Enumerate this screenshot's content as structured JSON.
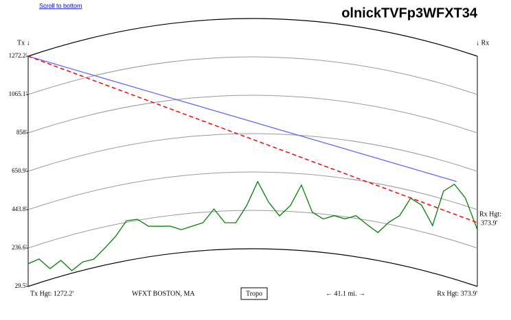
{
  "link": "Scroll to bottom",
  "chart_data": {
    "type": "line",
    "title": "olnickTVFp3WFXT34",
    "tx_label": "Tx ↓",
    "rx_label": "↓ Rx",
    "rx_side_label": [
      "Rx Hgt:",
      "373.9'"
    ],
    "footer": {
      "tx": "Tx Hgt: 1272.2'",
      "station": "WFXT BOSTON, MA",
      "button": "Tropo",
      "distance": "← 41.1 mi. →",
      "rx": "Rx Hgt: 373.9'"
    },
    "ylim": [
      29.5,
      1272.2
    ],
    "yticks": [
      {
        "value": 1272.2,
        "label": "1272.2'"
      },
      {
        "value": 1065.1,
        "label": "1065.1'"
      },
      {
        "value": 858,
        "label": "858'"
      },
      {
        "value": 650.9,
        "label": "650.9'"
      },
      {
        "value": 443.8,
        "label": "443.8'"
      },
      {
        "value": 236.6,
        "label": "236.6'"
      },
      {
        "value": 29.5,
        "label": "29.5'"
      }
    ],
    "xlim": [
      0,
      41.1
    ],
    "curvature": true,
    "series": [
      {
        "color": "#008000",
        "x": [
          0,
          1,
          2,
          3,
          4,
          5,
          6,
          7,
          8,
          9,
          10,
          11,
          12,
          13,
          14,
          15,
          16,
          17,
          18,
          19,
          20,
          21,
          22,
          23,
          24,
          25,
          26,
          27,
          28,
          29,
          30,
          31,
          32,
          33,
          34,
          35,
          36,
          37,
          38,
          39,
          40,
          41.1
        ],
        "values": [
          152,
          158,
          88,
          115,
          43,
          75,
          75,
          121,
          172,
          245,
          242,
          195,
          186,
          179,
          153,
          166,
          180,
          250,
          173,
          171,
          263,
          392,
          282,
          210,
          269,
          383,
          241,
          210,
          235,
          225,
          251,
          213,
          180,
          247,
          296,
          403,
          380,
          285,
          487,
          541,
          486,
          336
        ]
      },
      {
        "color": "#6666ff",
        "x": [
          0,
          39.2
        ],
        "values": [
          1272.2,
          560
        ]
      },
      {
        "color": "#ff0000",
        "dashed": true,
        "x": [
          0,
          41.1
        ],
        "values": [
          1272.2,
          373.9
        ]
      }
    ]
  }
}
